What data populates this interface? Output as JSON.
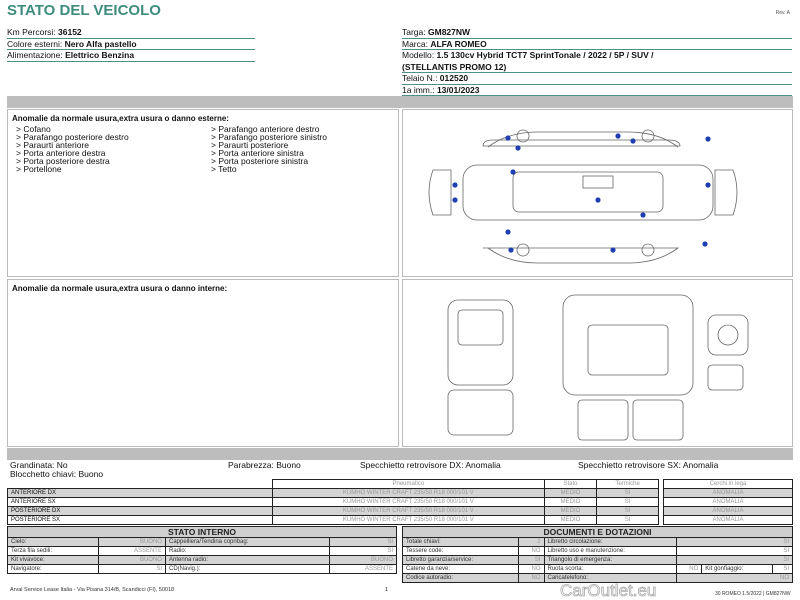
{
  "title": "STATO DEL VEICOLO",
  "rev": "Rev. A",
  "left_info": [
    {
      "label": "Km Percorsi: ",
      "value": "36152"
    },
    {
      "label": "Colore esterni: ",
      "value": "Nero Alfa pastello"
    },
    {
      "label": "Alimentazione: ",
      "value": "Elettrico Benzina"
    }
  ],
  "right_info": [
    {
      "label": "Targa: ",
      "value": "GM827NW"
    },
    {
      "label": "Marca: ",
      "value": "ALFA ROMEO"
    },
    {
      "label": "Modello: ",
      "value": "1.5 130cv Hybrid TCT7 SprintTonale / 2022 / 5P / SUV /"
    },
    {
      "label": "",
      "value": "(STELLANTIS PROMO 12)"
    },
    {
      "label": "Telaio N.: ",
      "value": "012520"
    },
    {
      "label": "1a imm.: ",
      "value": "13/01/2023"
    }
  ],
  "external": {
    "title": "Anomalie da normale usura,extra usura o danno esterne:",
    "col1": [
      "> Cofano",
      "> Parafango posteriore destro",
      "> Paraurti anteriore",
      "> Porta anteriore destra",
      "> Porta posteriore destra",
      "> Portellone"
    ],
    "col2": [
      "> Parafango anteriore destro",
      "> Parafango posteriore sinistro",
      "> Paraurti posteriore",
      "> Porta anteriore sinistra",
      "> Porta posteriore sinistra",
      "> Tetto"
    ],
    "dot_color": "#1f3fb0"
  },
  "internal": {
    "title": "Anomalie da normale usura,extra usura o danno interne:"
  },
  "status": {
    "grandinata": "Grandinata: No",
    "blocchetto": "Blocchetto chiavi: Buono",
    "parabrezza": "Parabrezza: Buono",
    "spec_dx": "Specchietto retrovisore DX: Anomalia",
    "spec_sx": "Specchietto retrovisore SX: Anomalia"
  },
  "tires": {
    "headers": [
      "Pneumatico",
      "Stato",
      "Termiche"
    ],
    "rims_header": "Cerchi in lega",
    "rows": [
      {
        "pos": "ANTERIORE DX",
        "tire": "KUMHO WINTER CRAFT 235/50 R18 000/101 V",
        "stato": "MEDIO",
        "term": "SI",
        "rim": "ANOMALIA"
      },
      {
        "pos": "ANTERIORE SX",
        "tire": "KUMHO WINTER CRAFT 235/50 R18 000/101 V",
        "stato": "MEDIO",
        "term": "SI",
        "rim": "ANOMALIA"
      },
      {
        "pos": "POSTERIORE DX",
        "tire": "KUMHO WINTER CRAFT 235/50 R18 000/101 V",
        "stato": "MEDIO",
        "term": "SI",
        "rim": "ANOMALIA"
      },
      {
        "pos": "POSTERIORE SX",
        "tire": "KUMHO WINTER CRAFT 235/50 R18 000/101 V",
        "stato": "MEDIO",
        "term": "SI",
        "rim": "ANOMALIA"
      }
    ]
  },
  "interno": {
    "title": "STATO INTERNO",
    "rows": [
      [
        "Cielo:",
        "BUONO",
        "Cappelliera/Tendina copribag:",
        "SI"
      ],
      [
        "Terza fila sedili:",
        "ASSENTE",
        "Radio:",
        "SI"
      ],
      [
        "Kit vivavoce:",
        "BUONO",
        "Antenna radio:",
        "BUONO"
      ],
      [
        "Navigatore:",
        "SI",
        "CD(Navig.):",
        "ASSENTE"
      ]
    ]
  },
  "documenti": {
    "title": "DOCUMENTI E DOTAZIONI",
    "rows": [
      [
        "Totale chiavi:",
        "2",
        "Libretto circolazione:",
        "SI"
      ],
      [
        "Tessere code:",
        "NO",
        "Libretto uso e manutenzione:",
        "SI"
      ],
      [
        "Libretto garanzia/service:",
        "SI",
        "Triangolo di emergenza:",
        "SI"
      ],
      [
        "Catene da neve:",
        "NO",
        "Ruota scorta:",
        "NO",
        "Kit gonfiaggio:",
        "SI"
      ],
      [
        "Codice autoradio:",
        "NO",
        "Caricatelefono:",
        "NO"
      ]
    ]
  },
  "footer": "Arval Service Lease Italia - Via Pisana 314/B, Scandicci (FI), 50018",
  "page": "1",
  "watermark": "CarOutlet.eu",
  "footer_right": "30 ROMEO 1.5/2022 | GM827NW"
}
